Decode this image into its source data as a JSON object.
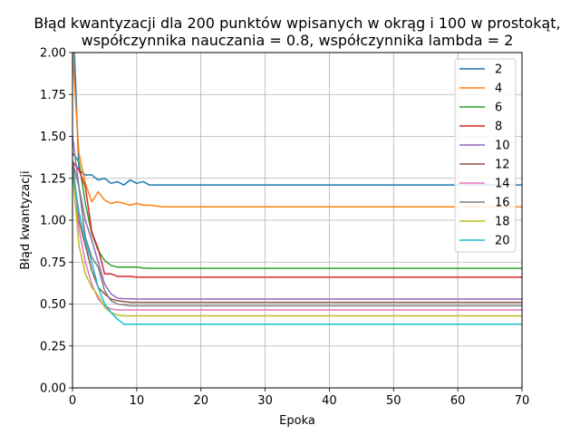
{
  "chart_data": {
    "type": "line",
    "title_lines": [
      "Błąd kwantyzacji dla 200 punktów wpisanych w okrąg i 100 w prostokąt,",
      "współczynnika nauczania = 0.8, współczynnika lambda = 2"
    ],
    "xlabel": "Epoka",
    "ylabel": "Błąd kwantyzacji",
    "xlim": [
      0,
      70
    ],
    "ylim": [
      0,
      2.0
    ],
    "xticks": [
      "0",
      "10",
      "20",
      "30",
      "40",
      "50",
      "60",
      "70"
    ],
    "yticks": [
      "0.00",
      "0.25",
      "0.50",
      "0.75",
      "1.00",
      "1.25",
      "1.50",
      "1.75",
      "2.00"
    ],
    "grid": true,
    "legend_position": "top-right",
    "x": [
      0,
      1,
      2,
      3,
      4,
      5,
      6,
      7,
      8,
      9,
      10,
      11,
      12,
      13,
      14,
      15,
      16,
      17,
      18,
      19,
      20,
      21,
      22,
      23,
      24,
      25,
      26,
      27,
      28,
      29,
      30,
      31,
      32,
      33,
      34,
      35,
      36,
      37,
      38,
      39,
      40,
      41,
      42,
      43,
      44,
      45,
      46,
      47,
      48,
      49,
      50,
      51,
      52,
      53,
      54,
      55,
      56,
      57,
      58,
      59,
      60,
      61,
      62,
      63,
      64,
      65,
      66,
      67,
      68,
      69,
      70
    ],
    "series": [
      {
        "name": "2",
        "color": "#1f77b4",
        "head": [
          2.3,
          1.3,
          1.27,
          1.27,
          1.24,
          1.25,
          1.22,
          1.23,
          1.21,
          1.24,
          1.22,
          1.23,
          1.21
        ],
        "tail": 1.21
      },
      {
        "name": "4",
        "color": "#ff7f0e",
        "head": [
          2.0,
          1.4,
          1.22,
          1.11,
          1.17,
          1.12,
          1.1,
          1.11,
          1.1,
          1.09,
          1.1,
          1.09,
          1.09,
          1.085,
          1.08
        ],
        "tail": 1.08
      },
      {
        "name": "6",
        "color": "#2ca02c",
        "head": [
          1.4,
          1.35,
          1.1,
          0.92,
          0.82,
          0.76,
          0.73,
          0.72,
          0.72,
          0.72,
          0.72,
          0.715
        ],
        "tail": 0.713
      },
      {
        "name": "8",
        "color": "#d62728",
        "head": [
          1.35,
          1.3,
          1.2,
          0.93,
          0.83,
          0.68,
          0.68,
          0.665,
          0.665,
          0.665,
          0.66
        ],
        "tail": 0.66
      },
      {
        "name": "10",
        "color": "#9467bd",
        "head": [
          1.5,
          1.2,
          1.0,
          0.88,
          0.75,
          0.62,
          0.56,
          0.535,
          0.532,
          0.532,
          0.53
        ],
        "tail": 0.53
      },
      {
        "name": "12",
        "color": "#8c564b",
        "head": [
          1.35,
          1.0,
          0.85,
          0.7,
          0.6,
          0.56,
          0.53,
          0.52,
          0.515,
          0.51,
          0.51
        ],
        "tail": 0.51
      },
      {
        "name": "14",
        "color": "#e377c2",
        "head": [
          1.3,
          0.95,
          0.75,
          0.62,
          0.53,
          0.49,
          0.47,
          0.465,
          0.465,
          0.465
        ],
        "tail": 0.465
      },
      {
        "name": "16",
        "color": "#7f7f7f",
        "head": [
          1.35,
          1.2,
          0.9,
          0.78,
          0.72,
          0.58,
          0.52,
          0.5,
          0.495,
          0.49
        ],
        "tail": 0.49
      },
      {
        "name": "18",
        "color": "#bcbd22",
        "head": [
          1.3,
          0.85,
          0.68,
          0.6,
          0.55,
          0.48,
          0.45,
          0.435,
          0.43,
          0.43
        ],
        "tail": 0.43
      },
      {
        "name": "20",
        "color": "#17becf",
        "head": [
          1.3,
          1.05,
          0.88,
          0.75,
          0.6,
          0.5,
          0.45,
          0.41,
          0.38,
          0.38,
          0.38
        ],
        "tail": 0.38
      }
    ]
  }
}
